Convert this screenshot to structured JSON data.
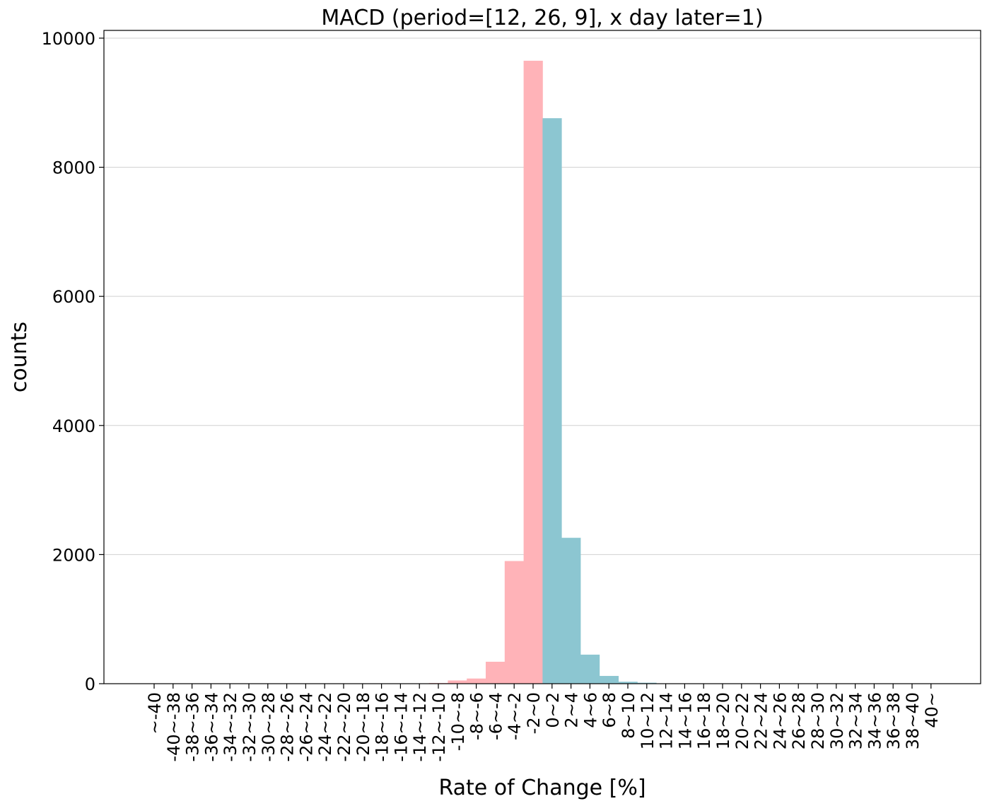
{
  "chart_data": {
    "type": "bar",
    "title": "MACD (period=[12, 26, 9], x day later=1)",
    "xlabel": "Rate of Change [%]",
    "ylabel": "counts",
    "ylim": [
      0,
      10120
    ],
    "yticks": [
      0,
      2000,
      4000,
      6000,
      8000,
      10000
    ],
    "grid": "horizontal",
    "categories": [
      "~-40",
      "-40~-38",
      "-38~-36",
      "-36~-34",
      "-34~-32",
      "-32~-30",
      "-30~-28",
      "-28~-26",
      "-26~-24",
      "-24~-22",
      "-22~-20",
      "-20~-18",
      "-18~-16",
      "-16~-14",
      "-14~-12",
      "-12~-10",
      "-10~-8",
      "-8~-6",
      "-6~-4",
      "-4~-2",
      "-2~0",
      "0~2",
      "2~4",
      "4~6",
      "6~8",
      "8~10",
      "10~12",
      "12~14",
      "14~16",
      "16~18",
      "18~20",
      "20~22",
      "22~24",
      "24~26",
      "26~28",
      "28~30",
      "30~32",
      "32~34",
      "34~36",
      "36~38",
      "38~40",
      "40~"
    ],
    "values": [
      0,
      0,
      0,
      0,
      0,
      0,
      0,
      0,
      0,
      0,
      0,
      0,
      0,
      0,
      2,
      10,
      50,
      80,
      340,
      1900,
      9650,
      8760,
      2260,
      450,
      120,
      30,
      15,
      0,
      0,
      0,
      0,
      0,
      0,
      0,
      0,
      0,
      0,
      0,
      0,
      0,
      0,
      0
    ],
    "colors": {
      "negative": "#ffb3b8",
      "positive": "#8cc6d1"
    }
  }
}
